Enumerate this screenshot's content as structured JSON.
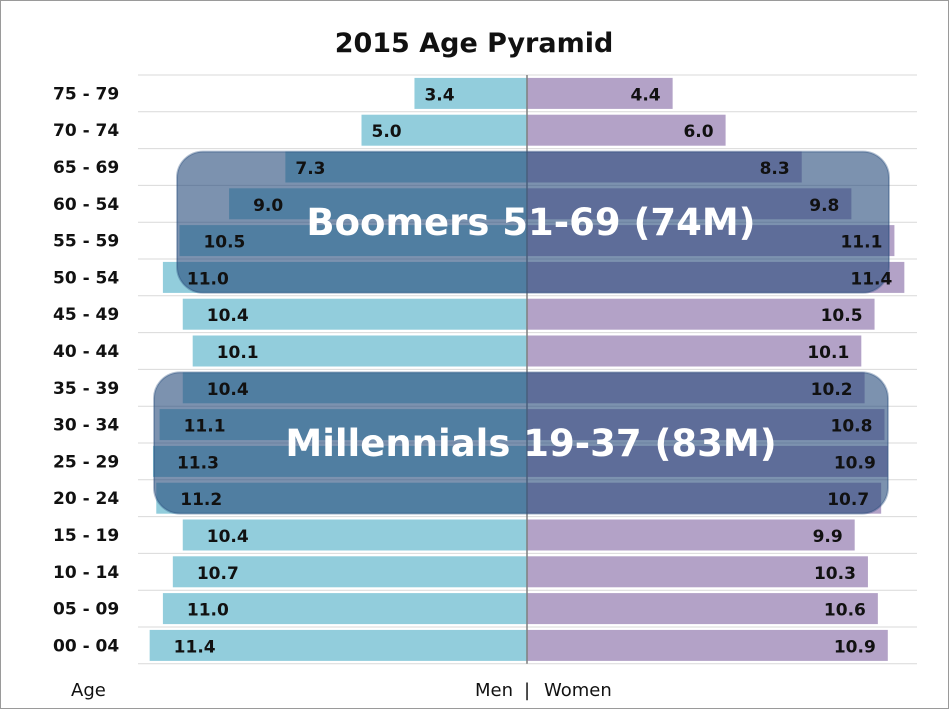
{
  "colors": {
    "men": "#92cddc",
    "women": "#b3a2c7",
    "overlay": "#244a7a",
    "grid": "#d9d9d9",
    "center": "#7f7f7f"
  },
  "chart_data": {
    "type": "bar",
    "orientation": "horizontal",
    "layout": "population-pyramid",
    "title": "2015 Age Pyramid",
    "ylabel": "Age",
    "xlabel": {
      "left": "Men",
      "separator": "|",
      "right": "Women"
    },
    "xlim": [
      -12,
      12
    ],
    "grid": true,
    "categories": [
      "75 - 79",
      "70 - 74",
      "65 - 69",
      "60 - 54",
      "55 - 59",
      "50 - 54",
      "45 - 49",
      "40 - 44",
      "35 - 39",
      "30 - 34",
      "25 - 29",
      "20 - 24",
      "15 - 19",
      "10 - 14",
      "05 - 09",
      "00 - 04"
    ],
    "series": [
      {
        "name": "Men",
        "values": [
          3.4,
          5.0,
          7.3,
          9.0,
          10.5,
          11.0,
          10.4,
          10.1,
          10.4,
          11.1,
          11.3,
          11.2,
          10.4,
          10.7,
          11.0,
          11.4
        ]
      },
      {
        "name": "Women",
        "values": [
          4.4,
          6.0,
          8.3,
          9.8,
          11.1,
          11.4,
          10.5,
          10.1,
          10.2,
          10.8,
          10.9,
          10.7,
          9.9,
          10.3,
          10.6,
          10.9
        ]
      }
    ],
    "value_labels": {
      "Men": [
        "3.4",
        "5.0",
        "7.3",
        "9.0",
        "10.5",
        "11.0",
        "10.4",
        "10.1",
        "10.4",
        "11.1",
        "11.3",
        "11.2",
        "10.4",
        "10.7",
        "11.0",
        "11.4"
      ],
      "Women": [
        "4.4",
        "6.0",
        "8.3",
        "9.8",
        "11.1",
        "11.4",
        "10.5",
        "10.1",
        "10.2",
        "10.8",
        "10.9",
        "10.7",
        "9.9",
        "10.3",
        "10.6",
        "10.9"
      ]
    },
    "annotations": [
      {
        "text": "Boomers 51-69 (74M)",
        "from": "65 - 69",
        "to": "50 - 54"
      },
      {
        "text": "Millennials 19-37 (83M)",
        "from": "35 - 39",
        "to": "20 - 24"
      }
    ]
  }
}
